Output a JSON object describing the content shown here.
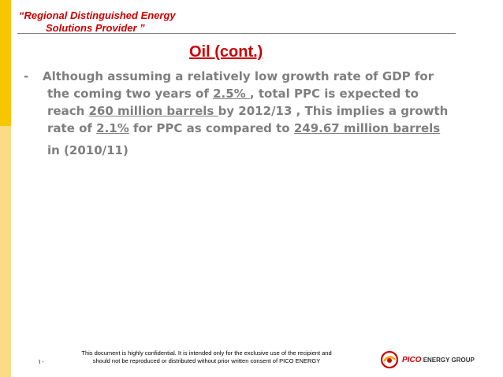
{
  "header": {
    "tagline_line1": "“Regional Distinguished Energy",
    "tagline_line2": "Solutions Provider ”"
  },
  "slide": {
    "title": "Oil (cont.)",
    "bullet_marker": "-",
    "text": {
      "p1": "Although assuming a relatively low growth rate of GDP for",
      "p2a": "the coming two years of ",
      "p2u": "2.5% ",
      "p2b": ", total PPC is expected to",
      "p3a": "reach ",
      "p3u": "260 million barrels ",
      "p3b": "by 2012/13 , This implies a growth",
      "p4a": "rate of ",
      "p4u1": "2.1%",
      "p4b": " for PPC as compared to ",
      "p4u2": "249.67 million barrels",
      "p5": "in (2010/11)"
    }
  },
  "footer": {
    "page_number": "١٠",
    "note_line1": "This document is highly confidential. It is intended only for the exclusive use of the recipient and",
    "note_line2": "should not be reproduced or distributed without prior written consent of PICO ENERGY",
    "logo_brand": "PICO",
    "logo_rest": "ENERGY GROUP"
  },
  "colors": {
    "accent_red": "#cc0000",
    "bar_yellow": "#f7c600",
    "bar_orange": "#fbdc86",
    "text_gray": "#7f7f7f"
  }
}
